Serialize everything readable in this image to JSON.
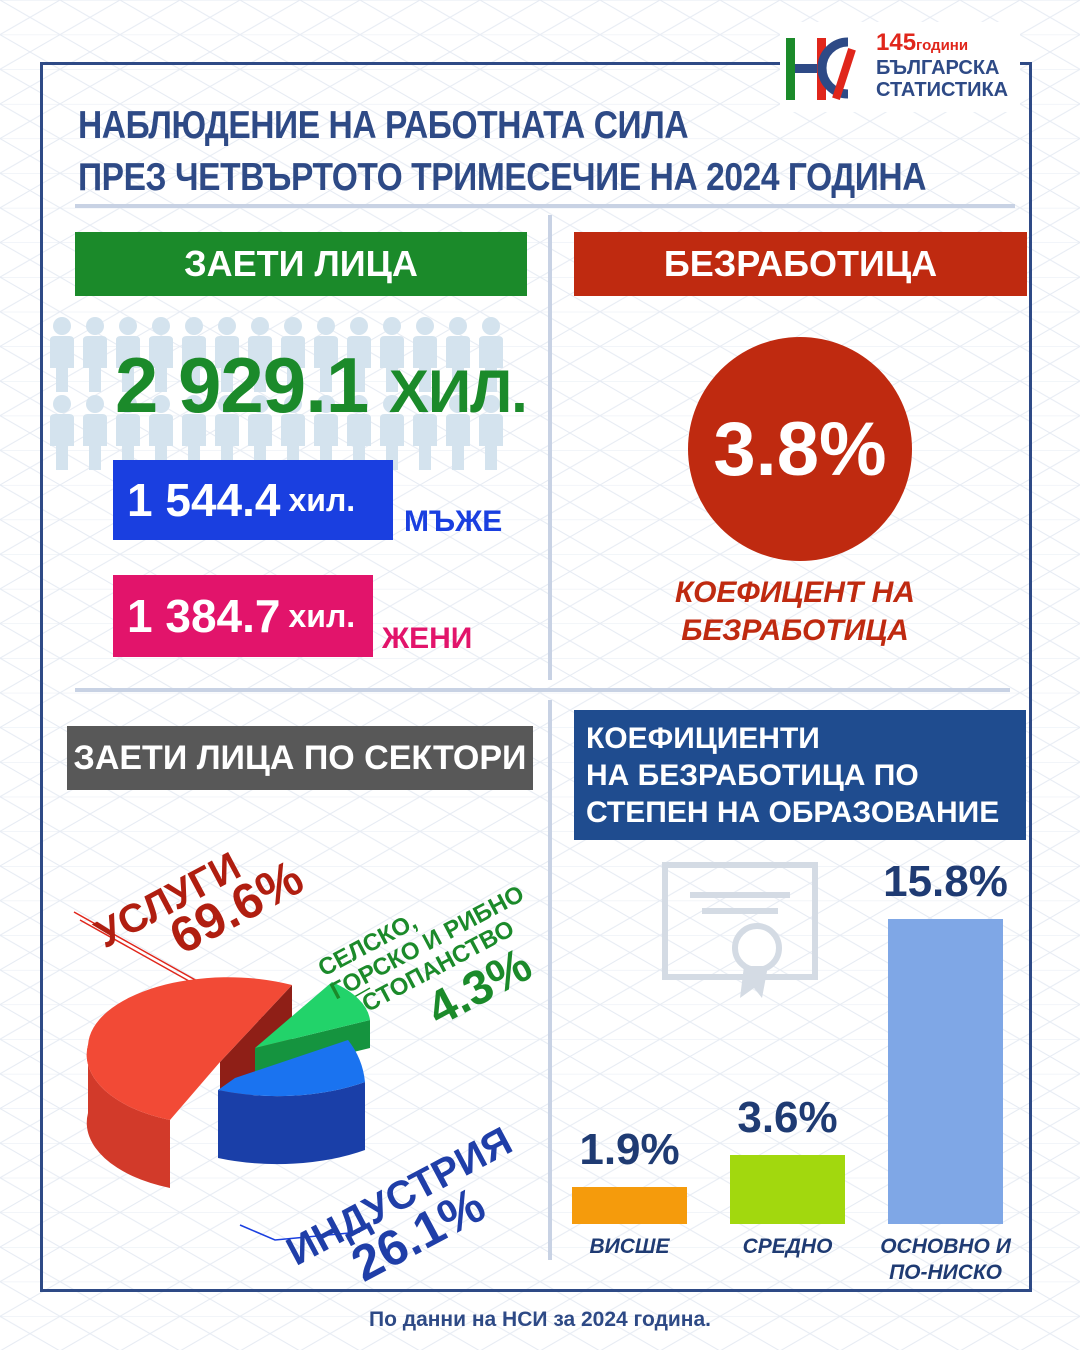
{
  "logo": {
    "letters": "НСИ",
    "years": "145",
    "years_word": "години",
    "line1": "БЪЛГАРСКА",
    "line2": "СТАТИСТИКА"
  },
  "title": {
    "line1": "НАБЛЮДЕНИЕ НА РАБОТНАТА СИЛА",
    "line2": "ПРЕЗ ЧЕТВЪРТОТО ТРИМЕСЕЧИЕ НА 2024 ГОДИНА"
  },
  "employed": {
    "banner": "ЗАЕТИ ЛИЦА",
    "total_value": "2 929.1",
    "total_unit": "хил.",
    "men_value": "1 544.4",
    "men_unit": "хил.",
    "men_label": "МЪЖЕ",
    "women_value": "1 384.7",
    "women_unit": "хил.",
    "women_label": "ЖЕНИ"
  },
  "unemployment": {
    "banner": "БЕЗРАБОТИЦА",
    "rate": "3.8%",
    "caption_line1": "КОЕФИЦЕНТ НА",
    "caption_line2": "БЕЗРАБОТИЦА"
  },
  "sectors": {
    "banner": "ЗАЕТИ ЛИЦА ПО СЕКТОРИ",
    "services_name": "УСЛУГИ",
    "services_value": "69.6%",
    "agri_line1": "СЕЛСКО,",
    "agri_line2": "ГОРСКО И РИБНО",
    "agri_line3": "СТОПАНСТВО",
    "agri_value": "4.3%",
    "industry_name": "ИНДУСТРИЯ",
    "industry_value": "26.1%"
  },
  "education": {
    "banner_line1": "КОЕФИЦИЕНТИ",
    "banner_line2": "НА БЕЗРАБОТИЦА ПО",
    "banner_line3": "СТЕПЕН НА ОБРАЗОВАНИЕ"
  },
  "colors": {
    "brand_blue": "#2e4a86",
    "green": "#1b8a2a",
    "red": "#bf2a10",
    "men_blue": "#1a3fe0",
    "women_pink": "#e2146b",
    "services": "#f24a36",
    "industry": "#1a73f0",
    "agriculture": "#22c55e",
    "bar_higher": "#f59b0c",
    "bar_secondary": "#a2d80e",
    "bar_primary": "#7fa7e6"
  },
  "chart_data": [
    {
      "type": "pie",
      "categories": [
        "УСЛУГИ",
        "СЕЛСКО, ГОРСКО И РИБНО СТОПАНСТВО",
        "ИНДУСТРИЯ"
      ],
      "values": [
        69.6,
        4.3,
        26.1
      ],
      "title": "ЗАЕТИ ЛИЦА ПО СЕКТОРИ"
    },
    {
      "type": "bar",
      "categories": [
        "ВИСШЕ",
        "СРЕДНО",
        "ОСНОВНО И ПО-НИСКО"
      ],
      "values": [
        1.9,
        3.6,
        15.8
      ],
      "value_labels": [
        "1.9%",
        "3.6%",
        "15.8%"
      ],
      "title": "КОЕФИЦИЕНТИ НА БЕЗРАБОТИЦА ПО СТЕПЕН НА ОБРАЗОВАНИЕ",
      "ylim": [
        0,
        15.8
      ],
      "grid": false
    }
  ],
  "footer": "По данни на НСИ за 2024 година."
}
